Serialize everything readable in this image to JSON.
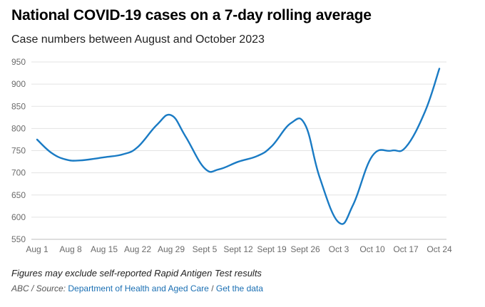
{
  "header": {
    "title": "National COVID-19 cases on a 7-day rolling average",
    "subtitle": "Case numbers between August and October 2023"
  },
  "footer": {
    "note": "Figures may exclude self-reported Rapid Antigen Test results",
    "source_prefix": "ABC / Source:",
    "source_link": "Department of Health and Aged Care",
    "separator": "/",
    "data_link": "Get the data"
  },
  "chart_data": {
    "type": "line",
    "title": "National COVID-19 cases on a 7-day rolling average",
    "subtitle": "Case numbers between August and October 2023",
    "xlabel": "",
    "ylabel": "",
    "ylim": [
      550,
      950
    ],
    "yticks": [
      550,
      600,
      650,
      700,
      750,
      800,
      850,
      900,
      950
    ],
    "xticks": [
      "Aug 1",
      "Aug 8",
      "Aug 15",
      "Aug 22",
      "Aug 29",
      "Sept 5",
      "Sept 12",
      "Sept 19",
      "Sept 26",
      "Oct 3",
      "Oct 10",
      "Oct 17",
      "Oct 24"
    ],
    "grid": true,
    "color": "#1a7bc4",
    "series": [
      {
        "name": "",
        "x": [
          "Aug 1",
          "Aug 4",
          "Aug 7",
          "Aug 10",
          "Aug 15",
          "Aug 19",
          "Aug 22",
          "Aug 26",
          "Aug 29",
          "Sept 1",
          "Sept 5",
          "Sept 8",
          "Sept 12",
          "Sept 16",
          "Sept 19",
          "Sept 23",
          "Sept 26",
          "Sept 29",
          "Oct 3",
          "Oct 6",
          "Oct 10",
          "Oct 14",
          "Oct 17",
          "Oct 21",
          "Oct 24"
        ],
        "values": [
          775,
          745,
          730,
          728,
          735,
          742,
          758,
          808,
          830,
          782,
          710,
          708,
          725,
          738,
          760,
          812,
          808,
          690,
          588,
          628,
          738,
          750,
          758,
          838,
          935
        ]
      }
    ]
  }
}
